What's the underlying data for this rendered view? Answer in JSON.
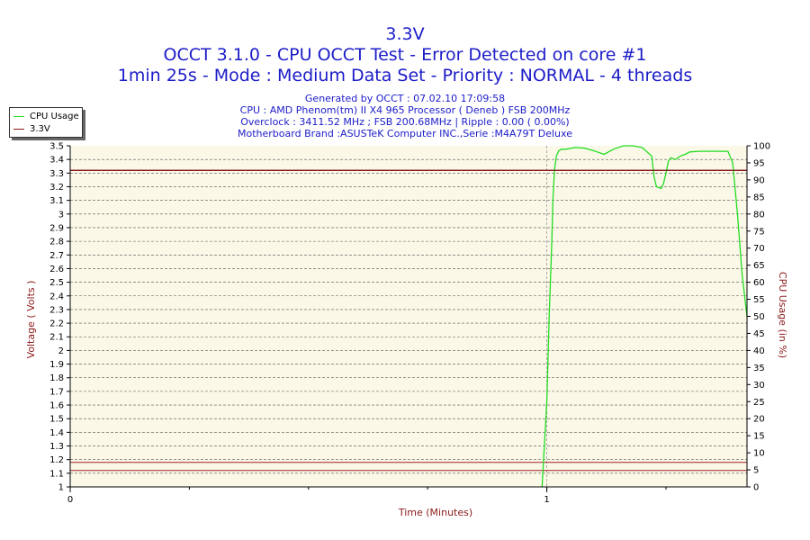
{
  "header": {
    "title": "3.3V",
    "subtitle1": "OCCT 3.1.0 - CPU OCCT Test - Error Detected on core #1",
    "subtitle2": "1min 25s - Mode : Medium Data Set - Priority : NORMAL - 4 threads"
  },
  "info": {
    "generated": "Generated by OCCT : 07.02.10 17:09:58",
    "cpu": "CPU : AMD Phenom(tm) II X4 965 Processor ( Deneb ) FSB 200MHz",
    "overclock": "Overclock : 3411.52 MHz ; FSB 200.68MHz | Ripple : 0.00 ( 0.00%)",
    "motherboard": "Motherboard Brand :ASUSTeK Computer INC.,Serie :M4A79T Deluxe"
  },
  "colors": {
    "cpu_usage": "#22dd22",
    "voltage": "#8b1a1a",
    "title": "#1c1cc8",
    "axis_label": "#8b1a1a",
    "plot_bg": "#fbf8e8"
  },
  "chart_data": {
    "type": "line",
    "xlabel": "Time (Minutes)",
    "ylabel_left": "Voltage ( Volts )",
    "ylabel_right": "CPU Usage (in %)",
    "xlim": [
      0,
      1.42
    ],
    "x_ticks": [
      0,
      1
    ],
    "ylim_left": [
      1,
      3.5
    ],
    "ylim_right": [
      0,
      100
    ],
    "y_ticks_left": [
      1,
      1.1,
      1.2,
      1.3,
      1.4,
      1.5,
      1.6,
      1.7,
      1.8,
      1.9,
      2,
      2.1,
      2.2,
      2.3,
      2.4,
      2.5,
      2.6,
      2.7,
      2.8,
      2.9,
      3,
      3.1,
      3.2,
      3.3,
      3.4,
      3.5
    ],
    "y_ticks_right": [
      0,
      5,
      10,
      15,
      20,
      25,
      30,
      35,
      40,
      45,
      50,
      55,
      60,
      65,
      70,
      75,
      80,
      85,
      90,
      95,
      100
    ],
    "grid": true,
    "legend": "top-left",
    "reference_lines_left": [
      3.32,
      1.18,
      1.12
    ],
    "series": [
      {
        "name": "CPU Usage",
        "axis": "right",
        "x": [
          0.99,
          1.0,
          1.005,
          1.01,
          1.013,
          1.016,
          1.02,
          1.025,
          1.03,
          1.04,
          1.06,
          1.08,
          1.1,
          1.12,
          1.14,
          1.16,
          1.18,
          1.2,
          1.22,
          1.225,
          1.23,
          1.24,
          1.245,
          1.25,
          1.255,
          1.26,
          1.27,
          1.28,
          1.29,
          1.3,
          1.32,
          1.34,
          1.36,
          1.38,
          1.39,
          1.4,
          1.41,
          1.42
        ],
        "values": [
          0,
          25,
          50,
          70,
          85,
          93,
          97,
          98.5,
          99,
          99,
          99.5,
          99.3,
          98.5,
          97.5,
          99,
          100,
          100,
          99.5,
          97,
          91,
          88,
          87.5,
          89,
          92,
          95.5,
          96.5,
          96,
          97,
          97.5,
          98.2,
          98.4,
          98.4,
          98.4,
          98.4,
          95,
          80,
          62,
          50
        ]
      },
      {
        "name": "3.3V",
        "axis": "left",
        "x": [
          0,
          1.42
        ],
        "values": [
          3.32,
          3.32
        ]
      }
    ]
  }
}
